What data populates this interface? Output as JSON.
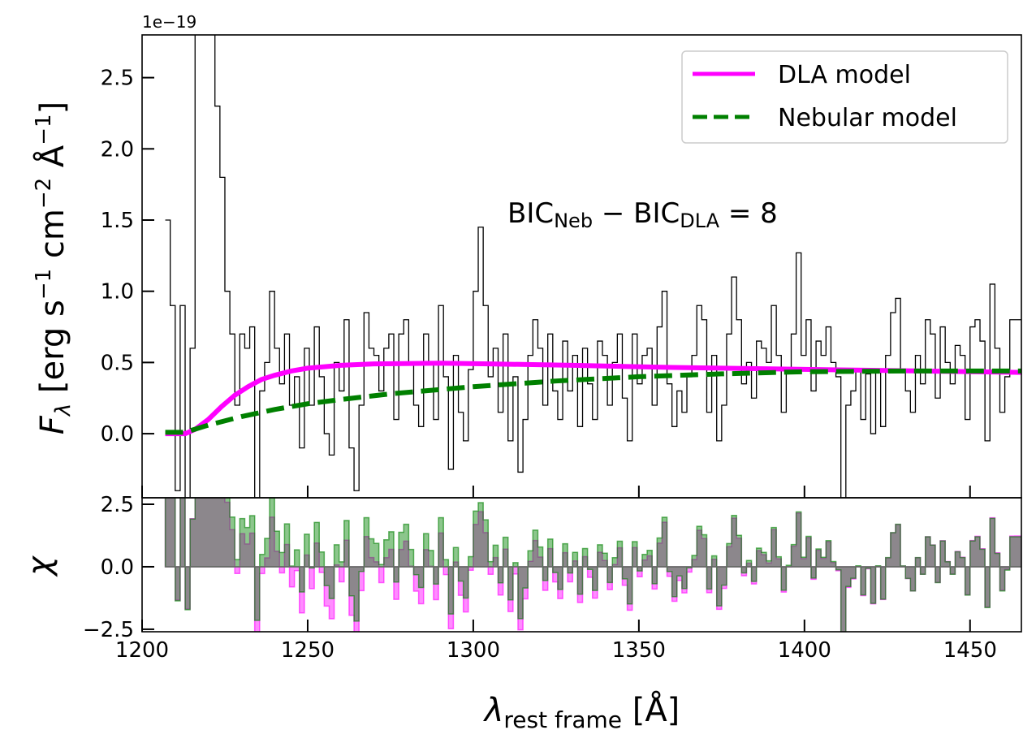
{
  "chart_data": [
    {
      "type": "line",
      "panel": "flux",
      "offset_text": "1e−19",
      "ylabel": {
        "symbol": "F",
        "sub": "λ",
        "u1": " [erg s",
        "e1": "−1",
        "u2": " cm",
        "e2": "−2",
        "u3": " Å",
        "e3": "−1",
        "u4": "]"
      },
      "xlim": [
        1200,
        1465.5
      ],
      "ylim": [
        -0.45,
        2.8
      ],
      "yticks": [
        "0.0",
        "0.5",
        "1.0",
        "1.5",
        "2.0",
        "2.5"
      ],
      "ytick_values": [
        0,
        0.5,
        1.0,
        1.5,
        2.0,
        2.5
      ],
      "annotation": {
        "a": "BIC",
        "a_sub": "Neb",
        "op": " − ",
        "b": "BIC",
        "b_sub": "DLA",
        "eq": " = 8"
      },
      "legend": {
        "placement": "top-right",
        "entries": [
          {
            "label": "DLA model",
            "color": "#ff00ff",
            "style": "solid"
          },
          {
            "label": "Nebular model",
            "color": "#008000",
            "style": "dashed"
          }
        ]
      },
      "spectrum": {
        "name": "observed flux",
        "style": "steps",
        "color": "#000000",
        "x_start": 1207.0,
        "bin_width": 1.5,
        "values": [
          1.5,
          0.9,
          -0.4,
          0.9,
          -0.5,
          0.6,
          3.5,
          3.5,
          3.5,
          3.5,
          2.3,
          1.8,
          1.0,
          0.7,
          0.2,
          0.7,
          0.6,
          0.75,
          -0.5,
          0.3,
          0.5,
          1.0,
          0.6,
          0.35,
          0.7,
          0.2,
          0.4,
          -0.1,
          0.6,
          0.2,
          0.75,
          0.4,
          0.0,
          -0.15,
          0.5,
          0.3,
          0.8,
          -0.1,
          -0.4,
          0.2,
          0.85,
          0.6,
          0.55,
          0.3,
          0.6,
          0.7,
          0.1,
          0.7,
          0.8,
          0.5,
          0.2,
          0.05,
          0.7,
          0.5,
          0.1,
          0.9,
          0.4,
          -0.25,
          0.55,
          0.15,
          -0.05,
          0.45,
          1.0,
          1.45,
          0.9,
          0.4,
          0.6,
          0.15,
          0.7,
          -0.05,
          0.4,
          -0.27,
          0.1,
          0.55,
          0.8,
          0.6,
          0.2,
          0.7,
          0.3,
          0.1,
          0.65,
          0.3,
          0.55,
          0.05,
          0.6,
          0.35,
          0.1,
          0.65,
          0.55,
          0.2,
          0.5,
          0.7,
          0.25,
          -0.05,
          0.7,
          0.35,
          0.55,
          0.6,
          0.2,
          0.75,
          1.0,
          0.35,
          0.05,
          0.3,
          0.15,
          0.4,
          0.55,
          0.9,
          0.8,
          0.15,
          0.55,
          -0.05,
          0.2,
          0.7,
          1.1,
          0.8,
          0.35,
          0.5,
          0.25,
          0.65,
          0.6,
          0.5,
          0.9,
          0.55,
          0.15,
          0.45,
          0.7,
          1.27,
          0.55,
          0.8,
          0.3,
          0.65,
          0.55,
          0.75,
          0.5,
          0.4,
          -0.5,
          0.2,
          0.3,
          0.45,
          0.1,
          0.42,
          0.0,
          0.45,
          0.05,
          0.55,
          0.85,
          0.95,
          0.45,
          0.3,
          0.15,
          0.55,
          0.35,
          0.8,
          0.7,
          0.25,
          0.75,
          0.5,
          0.35,
          0.62,
          0.55,
          0.1,
          0.75,
          0.8,
          0.65,
          -0.05,
          1.05,
          0.6,
          0.15,
          0.4,
          0.8,
          0.8,
          0.8
        ]
      },
      "dla_model": {
        "x": [
          1207,
          1213,
          1216,
          1220,
          1224,
          1228,
          1232,
          1236,
          1240,
          1245,
          1250,
          1260,
          1270,
          1290,
          1305,
          1330,
          1360,
          1390,
          1420,
          1450,
          1465.5
        ],
        "y": [
          0.0,
          0.0,
          0.03,
          0.1,
          0.19,
          0.27,
          0.33,
          0.38,
          0.41,
          0.44,
          0.46,
          0.48,
          0.49,
          0.495,
          0.49,
          0.48,
          0.465,
          0.455,
          0.445,
          0.435,
          0.43
        ]
      },
      "nebular_model": {
        "x": [
          1207,
          1213,
          1220,
          1230,
          1240,
          1250,
          1260,
          1275,
          1290,
          1300,
          1325,
          1350,
          1375,
          1400,
          1430,
          1465.5
        ],
        "y": [
          0.01,
          0.01,
          0.06,
          0.12,
          0.17,
          0.21,
          0.24,
          0.28,
          0.31,
          0.33,
          0.37,
          0.4,
          0.42,
          0.435,
          0.44,
          0.44
        ]
      }
    },
    {
      "type": "bar",
      "panel": "residuals",
      "style": "filled steps",
      "ylabel": "χ",
      "xlabel": {
        "symbol": "λ",
        "sub": "rest frame",
        "unit": " [Å]"
      },
      "xlim": [
        1200,
        1465.5
      ],
      "ylim": [
        -2.6,
        2.76
      ],
      "xticks": [
        "1200",
        "1250",
        "1300",
        "1350",
        "1400",
        "1450"
      ],
      "xtick_values": [
        1200,
        1250,
        1300,
        1350,
        1400,
        1450
      ],
      "yticks": [
        "2.5",
        "0.0",
        "−2.5"
      ],
      "ytick_values": [
        2.5,
        0,
        -2.5
      ],
      "series": [
        {
          "name": "χ DLA",
          "color": "#ff00ff"
        },
        {
          "name": "χ Nebular",
          "color": "#008000"
        }
      ]
    }
  ]
}
